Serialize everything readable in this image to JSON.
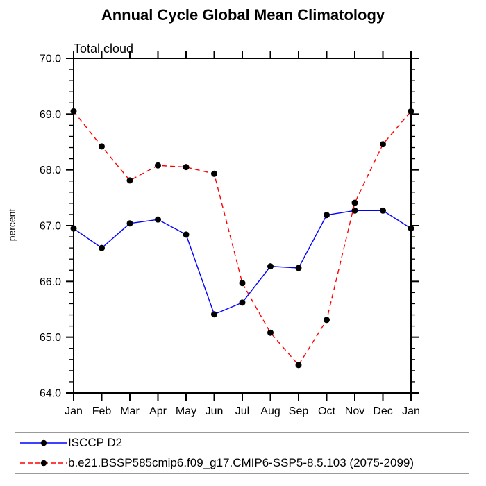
{
  "chart_data": {
    "type": "line",
    "title": "Annual Cycle Global Mean Climatology",
    "subtitle": "Total cloud",
    "ylabel": "percent",
    "xlabel": "",
    "categories": [
      "Jan",
      "Feb",
      "Mar",
      "Apr",
      "May",
      "Jun",
      "Jul",
      "Aug",
      "Sep",
      "Oct",
      "Nov",
      "Dec",
      "Jan"
    ],
    "series": [
      {
        "name": "ISCCP D2",
        "color": "#0000ff",
        "line_style": "solid",
        "marker": "filled-circle",
        "marker_color": "#000000",
        "values": [
          66.95,
          66.6,
          67.04,
          67.11,
          66.84,
          65.41,
          65.62,
          66.27,
          66.24,
          67.19,
          67.27,
          67.27,
          66.95
        ]
      },
      {
        "name": "b.e21.BSSP585cmip6.f09_g17.CMIP6-SSP5-8.5.103 (2075-2099)",
        "color": "#ff0000",
        "line_style": "dashed",
        "marker": "filled-circle",
        "marker_color": "#000000",
        "values": [
          69.05,
          68.42,
          67.81,
          68.08,
          68.05,
          67.93,
          65.97,
          65.08,
          64.5,
          65.31,
          67.41,
          68.46,
          69.05
        ]
      }
    ],
    "ylim": [
      64.0,
      70.0
    ],
    "ytick_major_interval": 1.0,
    "ytick_minor_interval": 0.2,
    "ytick_labels": [
      "64.0",
      "65.0",
      "66.0",
      "67.0",
      "68.0",
      "69.0",
      "70.0"
    ],
    "grid": false,
    "axis_color": "#000000",
    "legend_position": "bottom-box"
  }
}
